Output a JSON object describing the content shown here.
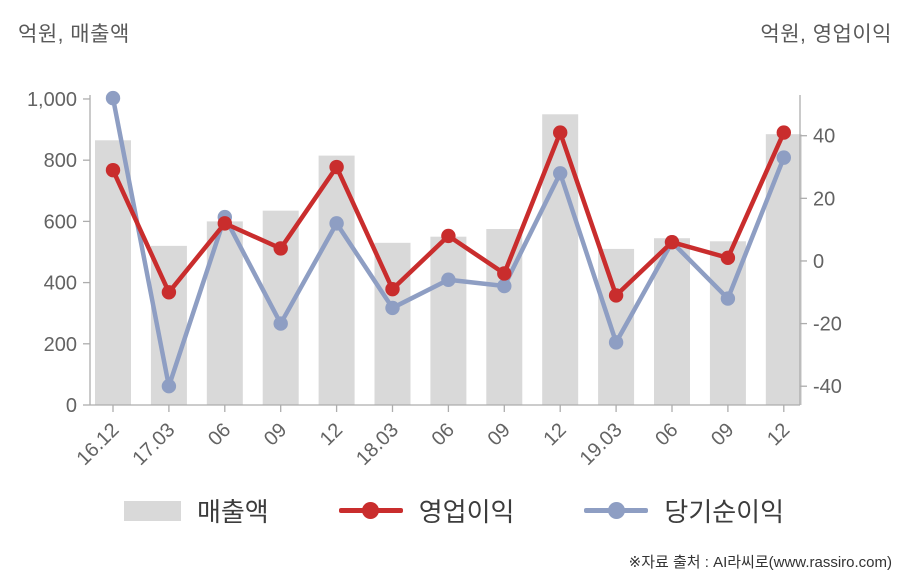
{
  "header": {
    "left_axis_title": "억원, 매출액",
    "right_axis_title": "억원, 영업이익"
  },
  "legend": [
    {
      "label": "매출액",
      "type": "bar",
      "color": "#d9d9d9"
    },
    {
      "label": "영업이익",
      "type": "line",
      "color": "#c92d2d"
    },
    {
      "label": "당기순이익",
      "type": "line",
      "color": "#8e9ec3"
    }
  ],
  "source_note": "※자료 출처 : AI라씨로(www.rassiro.com)",
  "chart_data": {
    "type": "bar",
    "subtype": "bar+line combo, dual axis",
    "categories": [
      "16.12",
      "17.03",
      "06",
      "09",
      "12",
      "18.03",
      "06",
      "09",
      "12",
      "19.03",
      "06",
      "09",
      "12"
    ],
    "series": [
      {
        "name": "매출액",
        "type": "bar",
        "axis": "left",
        "color": "#d9d9d9",
        "values": [
          865,
          520,
          600,
          635,
          815,
          530,
          550,
          575,
          950,
          510,
          545,
          535,
          885
        ]
      },
      {
        "name": "영업이익",
        "type": "line",
        "axis": "right",
        "color": "#c92d2d",
        "values": [
          29,
          -10,
          12,
          4,
          30,
          -9,
          8,
          -4,
          41,
          -11,
          6,
          1,
          41
        ]
      },
      {
        "name": "당기순이익",
        "type": "line",
        "axis": "right",
        "color": "#8e9ec3",
        "values": [
          52,
          -40,
          14,
          -20,
          12,
          -15,
          -6,
          -8,
          28,
          -26,
          6,
          -12,
          33
        ]
      }
    ],
    "left_axis": {
      "title": "억원, 매출액",
      "ticks": [
        0,
        200,
        400,
        600,
        800,
        1000
      ],
      "tick_labels": [
        "0",
        "200",
        "400",
        "600",
        "800",
        "1,000"
      ],
      "lim": [
        0,
        1013
      ]
    },
    "right_axis": {
      "title": "억원, 영업이익",
      "ticks": [
        -40,
        -20,
        0,
        20,
        40
      ],
      "tick_labels": [
        "-40",
        "-20",
        "0",
        "20",
        "40"
      ],
      "lim": [
        -46,
        53
      ]
    },
    "grid": false,
    "legend_position": "bottom"
  }
}
